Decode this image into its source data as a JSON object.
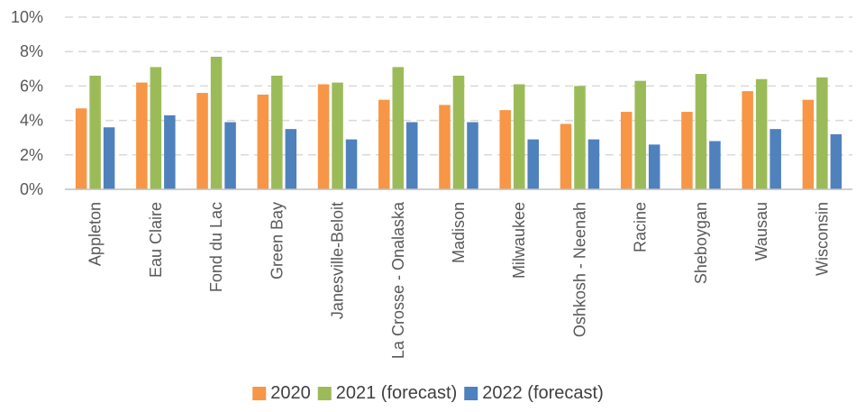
{
  "chart_data": {
    "type": "bar",
    "categories": [
      "Appleton",
      "Eau Claire",
      "Fond du Lac",
      "Green Bay",
      "Janesville-Beloit",
      "La Crosse - Onalaska",
      "Madison",
      "Milwaukee",
      "Oshkosh - Neenah",
      "Racine",
      "Sheboygan",
      "Wausau",
      "Wisconsin"
    ],
    "series": [
      {
        "name": "2020",
        "color": "#F79646",
        "values": [
          4.7,
          6.2,
          5.6,
          5.5,
          6.1,
          5.2,
          4.9,
          4.6,
          3.8,
          4.5,
          4.5,
          5.7,
          5.2
        ]
      },
      {
        "name": "2021 (forecast)",
        "color": "#9BBB59",
        "values": [
          6.6,
          7.1,
          7.7,
          6.6,
          6.2,
          7.1,
          6.6,
          6.1,
          6.0,
          6.3,
          6.7,
          6.4,
          6.5
        ]
      },
      {
        "name": "2022 (forecast)",
        "color": "#4F81BD",
        "values": [
          3.6,
          4.3,
          3.9,
          3.5,
          2.9,
          3.9,
          3.9,
          2.9,
          2.9,
          2.6,
          2.8,
          3.5,
          3.2
        ]
      }
    ],
    "yticks": [
      "0%",
      "2%",
      "4%",
      "6%",
      "8%",
      "10%"
    ],
    "ylim": [
      0,
      10
    ],
    "grid": true,
    "legend_position": "bottom"
  }
}
